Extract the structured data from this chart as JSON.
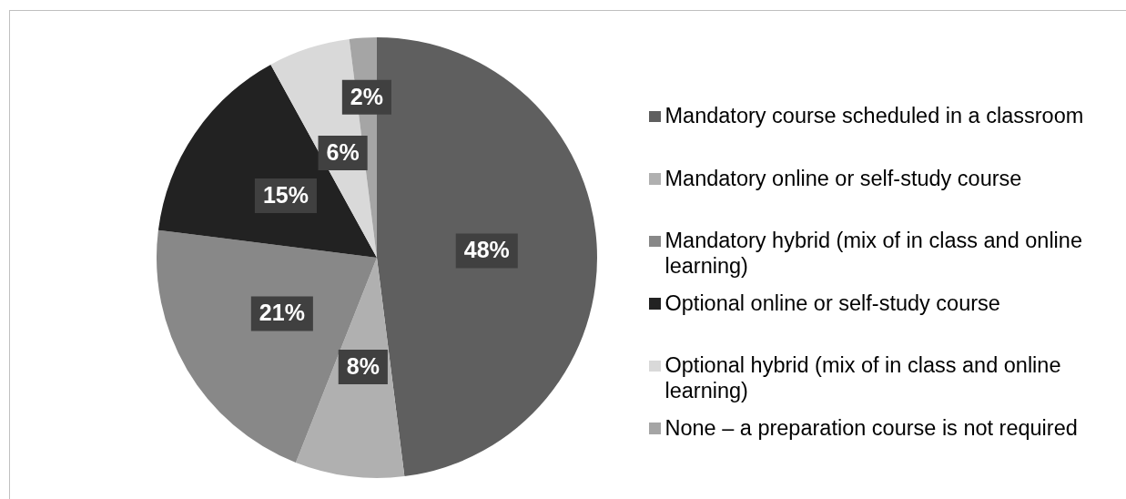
{
  "chart_data": {
    "type": "pie",
    "categories": [
      "Mandatory course scheduled in a classroom",
      "Mandatory online or self-study course",
      "Mandatory hybrid (mix of in class and online learning)",
      "Optional online or self-study course",
      "Optional hybrid (mix of in class and online learning)",
      "None – a preparation course is not required"
    ],
    "values": [
      48,
      8,
      21,
      15,
      6,
      2
    ],
    "colors": [
      "#5f5f5f",
      "#b0b0b0",
      "#888888",
      "#222222",
      "#d9d9d9",
      "#a5a5a5"
    ],
    "value_labels": [
      "48%",
      "8%",
      "21%",
      "15%",
      "6%",
      "2%"
    ],
    "legend": "right"
  }
}
